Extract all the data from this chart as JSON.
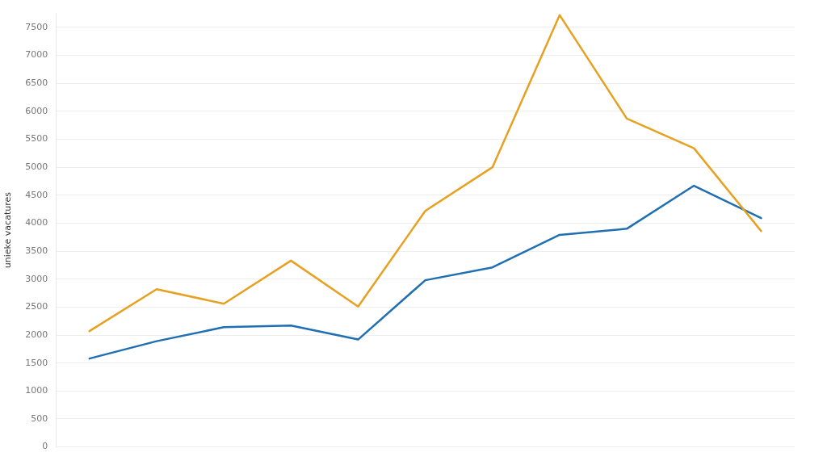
{
  "chart_data": {
    "type": "line",
    "ylabel": "unieke vacatures",
    "categories": [
      null,
      null,
      null,
      null,
      null,
      null,
      null,
      null,
      null,
      null,
      null
    ],
    "series": [
      {
        "color": "#e8a020",
        "values": [
          2070,
          2820,
          2560,
          3330,
          2510,
          4220,
          5000,
          7720,
          5870,
          5340,
          3860
        ]
      },
      {
        "color": "#1f6fb2",
        "values": [
          1580,
          1890,
          2140,
          2170,
          1920,
          2980,
          3210,
          3790,
          3900,
          4670,
          4090
        ]
      }
    ],
    "ylim": [
      0,
      7750
    ],
    "yticks": [
      0,
      500,
      1000,
      1500,
      2000,
      2500,
      3000,
      3500,
      4000,
      4500,
      5000,
      5500,
      6000,
      6500,
      7000,
      7500
    ],
    "grid": "y",
    "legend": false,
    "marker": "none",
    "line_style": "solid"
  }
}
